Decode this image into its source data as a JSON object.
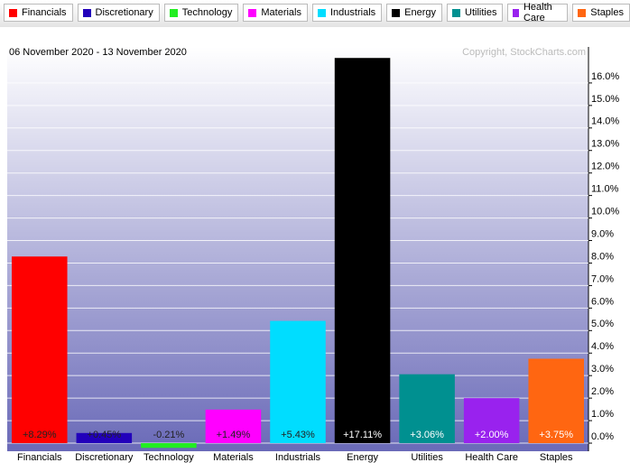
{
  "chart_data": {
    "type": "bar",
    "subtitle": "06 November 2020 - 13 November 2020",
    "annotation": "Copyright, StockCharts.com",
    "categories": [
      "Financials",
      "Discretionary",
      "Technology",
      "Materials",
      "Industrials",
      "Energy",
      "Utilities",
      "Health Care",
      "Staples"
    ],
    "values": [
      8.29,
      0.45,
      -0.21,
      1.49,
      5.43,
      17.11,
      3.06,
      2.0,
      3.75
    ],
    "value_labels": [
      "+8.29%",
      "+0.45%",
      "-0.21%",
      "+1.49%",
      "+5.43%",
      "+17.11%",
      "+3.06%",
      "+2.00%",
      "+3.75%"
    ],
    "colors": [
      "#ff0000",
      "#2200bb",
      "#22ee22",
      "#ff00ff",
      "#00ddff",
      "#000000",
      "#009090",
      "#9922ee",
      "#ff6611"
    ],
    "ylim": [
      -0.36,
      17.6
    ],
    "yticks": [
      {
        "value": 0,
        "label": "0.0%"
      },
      {
        "value": 1,
        "label": "1.0%"
      },
      {
        "value": 2,
        "label": "2.0%"
      },
      {
        "value": 3,
        "label": "3.0%"
      },
      {
        "value": 4,
        "label": "4.0%"
      },
      {
        "value": 5,
        "label": "5.0%"
      },
      {
        "value": 6,
        "label": "6.0%"
      },
      {
        "value": 7,
        "label": "7.0%"
      },
      {
        "value": 8,
        "label": "8.0%"
      },
      {
        "value": 9,
        "label": "9.0%"
      },
      {
        "value": 10,
        "label": "10.0%"
      },
      {
        "value": 11,
        "label": "11.0%"
      },
      {
        "value": 12,
        "label": "12.0%"
      },
      {
        "value": 13,
        "label": "13.0%"
      },
      {
        "value": 14,
        "label": "14.0%"
      },
      {
        "value": 15,
        "label": "15.0%"
      },
      {
        "value": 16,
        "label": "16.0%"
      }
    ],
    "grid": true,
    "axis_side": "right"
  }
}
